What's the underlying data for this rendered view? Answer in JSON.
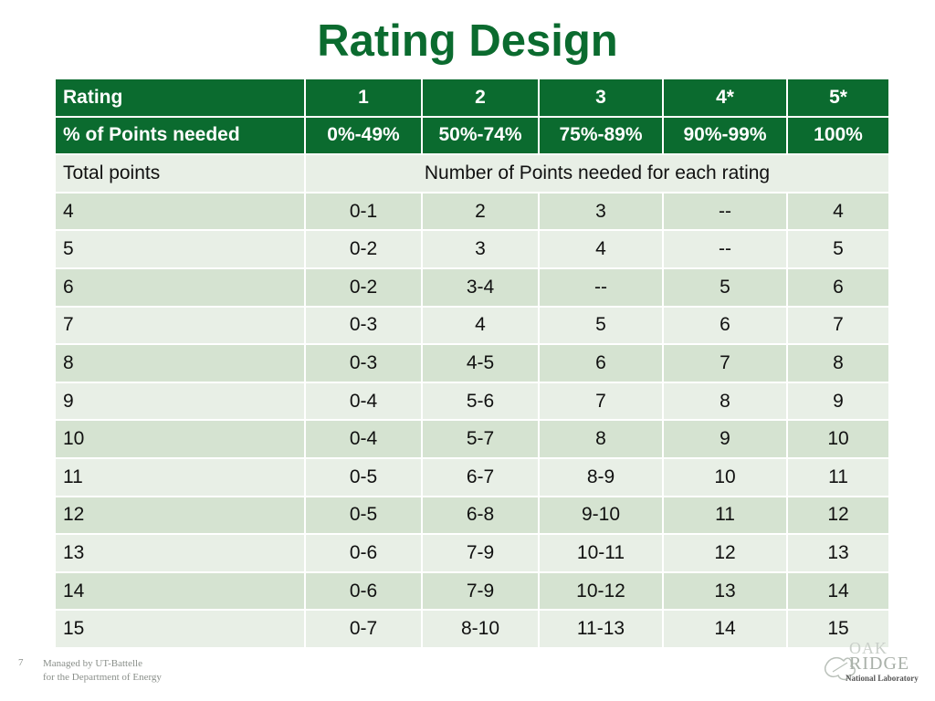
{
  "title": "Rating Design",
  "table": {
    "header": [
      "Rating",
      "1",
      "2",
      "3",
      "4*",
      "5*"
    ],
    "percent_row": [
      "% of Points needed",
      "0%-49%",
      "50%-74%",
      "75%-89%",
      "90%-99%",
      "100%"
    ],
    "subheader": {
      "label": "Total points",
      "span_text": "Number of Points needed for each rating"
    },
    "rows": [
      [
        "4",
        "0-1",
        "2",
        "3",
        "--",
        "4"
      ],
      [
        "5",
        "0-2",
        "3",
        "4",
        "--",
        "5"
      ],
      [
        "6",
        "0-2",
        "3-4",
        "--",
        "5",
        "6"
      ],
      [
        "7",
        "0-3",
        "4",
        "5",
        "6",
        "7"
      ],
      [
        "8",
        "0-3",
        "4-5",
        "6",
        "7",
        "8"
      ],
      [
        "9",
        "0-4",
        "5-6",
        "7",
        "8",
        "9"
      ],
      [
        "10",
        "0-4",
        "5-7",
        "8",
        "9",
        "10"
      ],
      [
        "11",
        "0-5",
        "6-7",
        "8-9",
        "10",
        "11"
      ],
      [
        "12",
        "0-5",
        "6-8",
        "9-10",
        "11",
        "12"
      ],
      [
        "13",
        "0-6",
        "7-9",
        "10-11",
        "12",
        "13"
      ],
      [
        "14",
        "0-6",
        "7-9",
        "10-12",
        "13",
        "14"
      ],
      [
        "15",
        "0-7",
        "8-10",
        "11-13",
        "14",
        "15"
      ]
    ]
  },
  "footer": {
    "page_number": "7",
    "line1": "Managed by UT-Battelle",
    "line2": "for the Department of Energy"
  },
  "logo": {
    "line1": "OAK",
    "line2": "RIDGE",
    "line3": "National Laboratory",
    "icon": "oak-leaf-icon"
  },
  "colors": {
    "accent": "#0b6b2f",
    "row_light": "#e8efe6",
    "row_dark": "#d5e3d1"
  }
}
